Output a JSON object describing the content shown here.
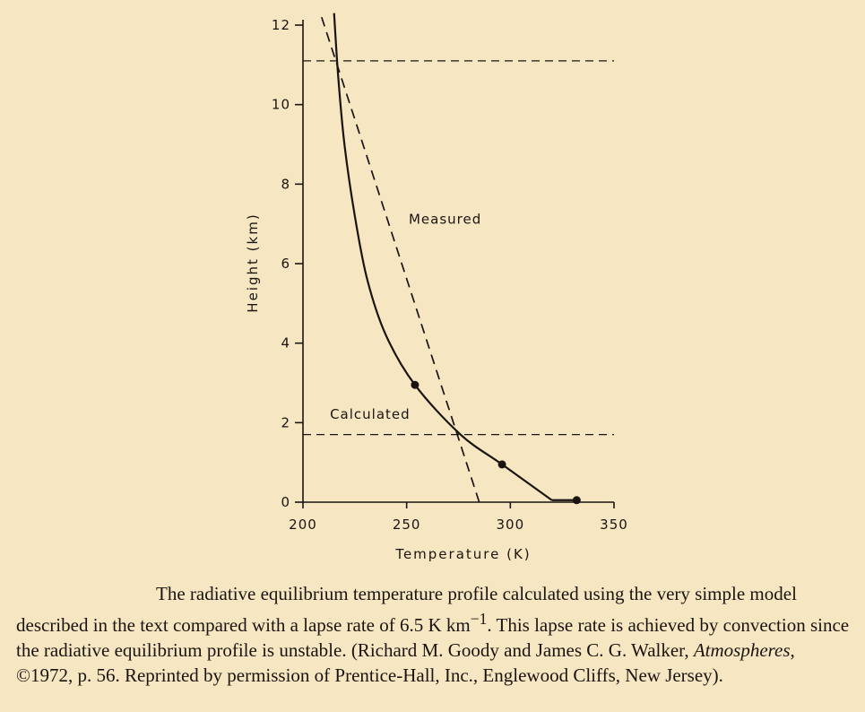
{
  "chart_data": {
    "type": "line",
    "xlabel": "Temperature (K)",
    "ylabel": "Height (km)",
    "xlim": [
      200,
      350
    ],
    "ylim": [
      0,
      12
    ],
    "x_ticks": [
      200,
      250,
      300,
      350
    ],
    "y_ticks": [
      0,
      2,
      4,
      6,
      8,
      10,
      12
    ],
    "series": [
      {
        "name": "Measured",
        "style": "dashed",
        "points": [
          [
            285,
            0
          ],
          [
            276,
            1.7
          ],
          [
            254,
            5.1
          ],
          [
            238,
            7.5
          ],
          [
            216,
            11.1
          ],
          [
            209,
            12.2
          ]
        ]
      },
      {
        "name": "Calculated",
        "style": "solid",
        "points": [
          [
            320,
            0.05
          ],
          [
            296,
            0.95
          ],
          [
            276,
            1.7
          ],
          [
            254,
            2.95
          ],
          [
            240,
            4.2
          ],
          [
            231,
            5.6
          ],
          [
            225,
            7.2
          ],
          [
            220,
            9.0
          ],
          [
            217,
            10.7
          ],
          [
            215,
            12.3
          ]
        ],
        "markers": [
          [
            254,
            2.95
          ],
          [
            296,
            0.95
          ],
          [
            332,
            0.05
          ]
        ]
      }
    ],
    "extra_segments": [
      {
        "from": [
          320,
          0.05
        ],
        "to": [
          332,
          0.05
        ],
        "style": "solid"
      }
    ],
    "reference_lines": [
      {
        "axis": "y",
        "value": 11.1,
        "style": "dashed",
        "x_extent": [
          200,
          350
        ]
      },
      {
        "axis": "y",
        "value": 1.7,
        "style": "dashed",
        "x_extent": [
          200,
          350
        ]
      }
    ],
    "grid": false
  },
  "caption": {
    "part1": "The radiative equilibrium temperature profile calculated using the very simple model described in the text compared with a lapse rate of 6.5 K km",
    "superscript": "−1",
    "part2": ". This lapse rate is achieved by convection since the radiative equilibrium profile is unstable. (Richard M. Goody and James C. G. Walker, ",
    "book": "Atmospheres",
    "part3": ", ©1972, p. 56. Reprinted by permission of Prentice-Hall, Inc., Englewood Cliffs, New Jersey)."
  }
}
